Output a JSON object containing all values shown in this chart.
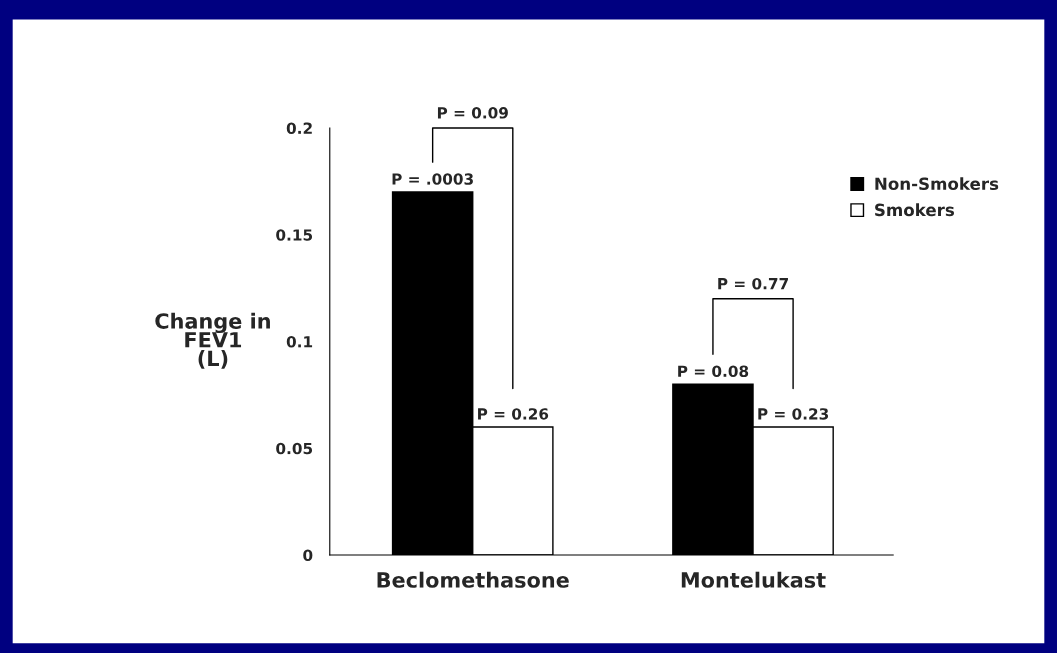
{
  "chart_data": {
    "type": "bar",
    "ylabel": "Change in\nFEV1\n(L)",
    "categories": [
      "Beclomethasone",
      "Montelukast"
    ],
    "series": [
      {
        "name": "Non-Smokers",
        "color": "#000000",
        "values": [
          0.17,
          0.08
        ]
      },
      {
        "name": "Smokers",
        "color": "#ffffff",
        "values": [
          0.06,
          0.06
        ]
      }
    ],
    "value_labels": [
      [
        "P = .0003",
        "P = 0.08"
      ],
      [
        "P = 0.26",
        "P = 0.23"
      ]
    ],
    "annotations": [
      "P = 0.09",
      "P = 0.77"
    ],
    "ylim": [
      0,
      0.2
    ],
    "yticks": [
      0,
      0.05,
      0.1,
      0.15,
      0.2
    ],
    "grid": false,
    "legend": "top right"
  }
}
